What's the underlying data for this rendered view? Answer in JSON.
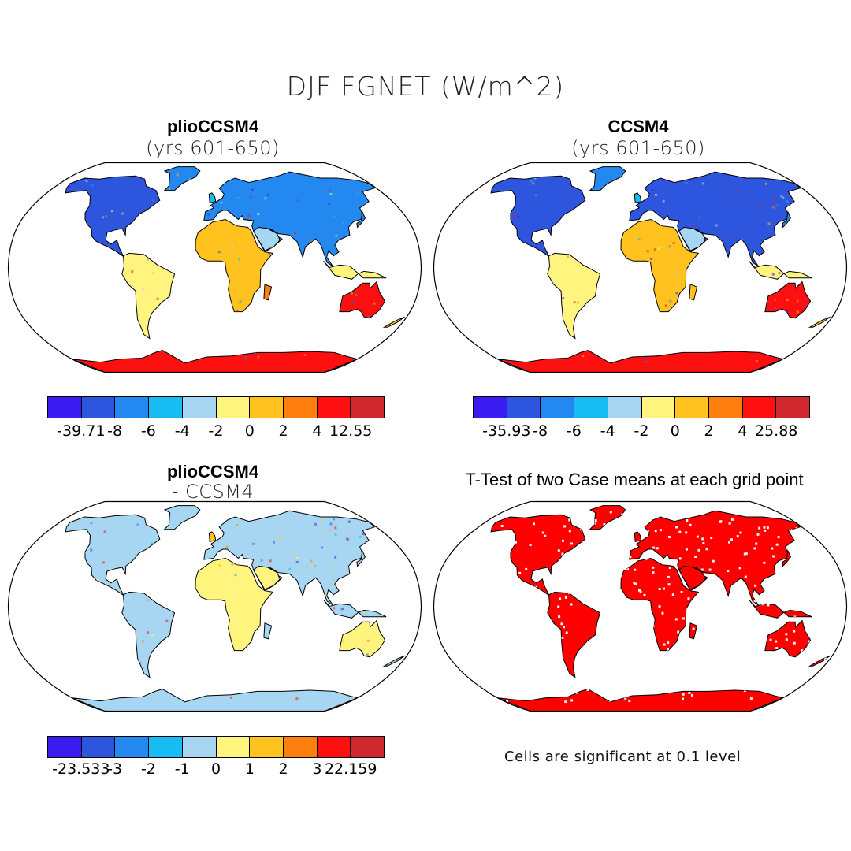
{
  "title": "DJF FGNET (W/m^2)",
  "colors": {
    "scale": [
      "#3b1cf0",
      "#2e55de",
      "#2388f0",
      "#17bcf2",
      "#a6d6f2",
      "#fff47e",
      "#ffc21e",
      "#ff7f0e",
      "#ff1010",
      "#d0282e"
    ],
    "land_outline": "#000000",
    "significant": "#ff0000"
  },
  "panels": {
    "top_left": {
      "title": "plioCCSM4",
      "subtitle": "(yrs 601-650)",
      "colorbar": {
        "labels": [
          "-39.71",
          "-8",
          "-6",
          "-4",
          "-2",
          "0",
          "2",
          "4",
          "12.55"
        ]
      }
    },
    "top_right": {
      "title": "CCSM4",
      "subtitle": "(yrs 601-650)",
      "colorbar": {
        "labels": [
          "-35.93",
          "-8",
          "-6",
          "-4",
          "-2",
          "0",
          "2",
          "4",
          "25.88"
        ]
      }
    },
    "bottom_left": {
      "title": "plioCCSM4",
      "subtitle": "- CCSM4",
      "colorbar": {
        "labels": [
          "-23.533",
          "-3",
          "-2",
          "-1",
          "0",
          "1",
          "2",
          "3",
          "22.159"
        ]
      }
    },
    "bottom_right": {
      "title": "T-Test of two Case means at each grid point",
      "note": "Cells are significant at 0.1 level"
    }
  }
}
